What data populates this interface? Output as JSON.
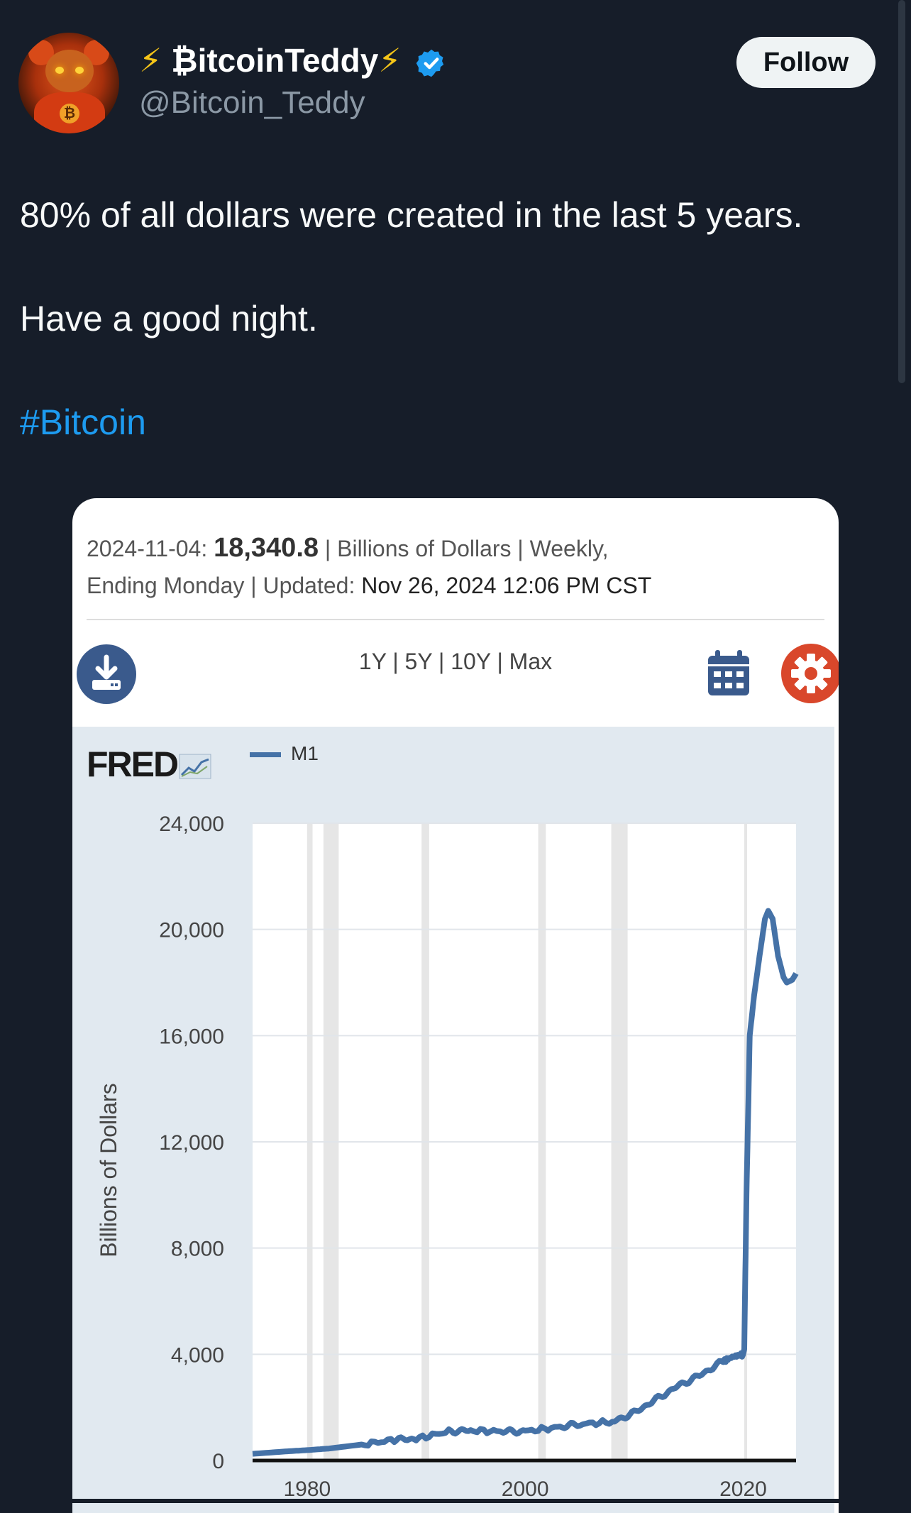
{
  "user": {
    "display_name": "₿itcoinTeddy",
    "bolt_left": "⚡",
    "bolt_right": "⚡",
    "handle": "@Bitcoin_Teddy",
    "follow_label": "Follow",
    "avatar_icon": "bear-avatar"
  },
  "tweet": {
    "line1": "80% of all dollars were created in the last 5 years.",
    "line2": "Have a good night.",
    "hashtag": "#Bitcoin"
  },
  "card": {
    "date_label": "2024-11-04:",
    "value": "18,340.8",
    "meta_rest1": " | Billions of Dollars | Weekly,",
    "meta_line2_a": "Ending Monday | Updated: ",
    "meta_line2_b": "Nov 26, 2024 12:06 PM CST",
    "range_links": "1Y | 5Y | 10Y | Max",
    "logo": "FRED",
    "colors": {
      "download": "#3a5a8c",
      "calendar": "#3a5a8c",
      "gear": "#d9472b",
      "series": "#4572a7"
    }
  },
  "chart_data": {
    "type": "line",
    "series": [
      {
        "name": "M1",
        "x": [
          1975,
          1978,
          1980,
          1982,
          1985,
          1988,
          1990,
          1993,
          1995,
          1998,
          2000,
          2003,
          2005,
          2008,
          2010,
          2012,
          2014,
          2016,
          2018,
          2019,
          2020.0,
          2020.1,
          2020.3,
          2020.6,
          2021.0,
          2021.5,
          2022.0,
          2022.3,
          2022.7,
          2023.2,
          2023.7,
          2024.0,
          2024.5,
          2024.85
        ],
        "y": [
          250,
          340,
          390,
          450,
          600,
          780,
          810,
          1100,
          1130,
          1090,
          1100,
          1250,
          1370,
          1450,
          1800,
          2300,
          2800,
          3200,
          3700,
          3900,
          4000,
          4200,
          10000,
          16000,
          17500,
          19000,
          20400,
          20700,
          20400,
          19000,
          18200,
          18000,
          18100,
          18340
        ]
      }
    ],
    "ylabel": "Billions of Dollars",
    "y_ticks": [
      "24,000",
      "20,000",
      "16,000",
      "12,000",
      "8,000",
      "4,000",
      "0"
    ],
    "y_tick_values": [
      24000,
      20000,
      16000,
      12000,
      8000,
      4000,
      0
    ],
    "x_ticks": [
      "1980",
      "2000",
      "2020"
    ],
    "x_tick_values": [
      1980,
      2000,
      2020
    ],
    "ylim": [
      0,
      24000
    ],
    "xlim": [
      1975,
      2024.85
    ],
    "recessions": [
      [
        1980.0,
        1980.5
      ],
      [
        1981.5,
        1982.9
      ],
      [
        1990.5,
        1991.2
      ],
      [
        2001.2,
        2001.9
      ],
      [
        2007.9,
        2009.4
      ],
      [
        2020.1,
        2020.3
      ]
    ],
    "grid": true
  }
}
